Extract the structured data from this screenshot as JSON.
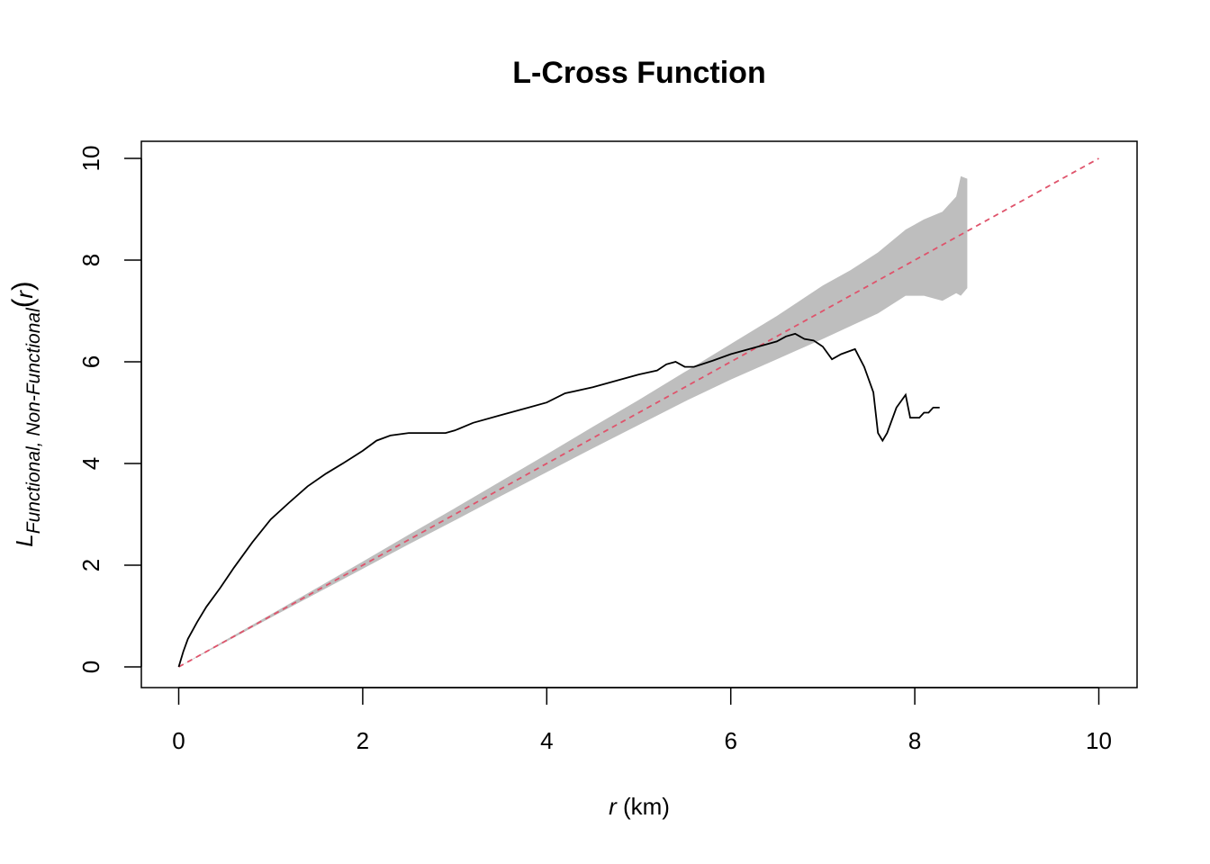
{
  "chart_data": {
    "type": "line",
    "title": "L-Cross Function",
    "xlabel": {
      "var": "r",
      "unit": " (km)"
    },
    "ylabel": {
      "main": "L",
      "sub": "Functional, Non-Functional",
      "arg": "r"
    },
    "xlim": [
      0,
      10
    ],
    "ylim": [
      0,
      10
    ],
    "xticks": [
      "0",
      "2",
      "4",
      "6",
      "8",
      "10"
    ],
    "yticks": [
      "0",
      "2",
      "4",
      "6",
      "8",
      "10"
    ],
    "grid": false,
    "legend": "none",
    "colors": {
      "observed": "#000000",
      "theoretical": "#DF536B",
      "envelope": "#BEBEBE"
    },
    "envelope": {
      "x": [
        0,
        0.5,
        1,
        1.5,
        2,
        2.5,
        3,
        3.5,
        4,
        4.5,
        5,
        5.5,
        6,
        6.5,
        7,
        7.3,
        7.6,
        7.9,
        8.1,
        8.3,
        8.45,
        8.5,
        8.57
      ],
      "lo": [
        0,
        0.48,
        0.97,
        1.45,
        1.93,
        2.41,
        2.88,
        3.36,
        3.83,
        4.3,
        4.76,
        5.22,
        5.65,
        6.05,
        6.45,
        6.7,
        6.95,
        7.3,
        7.3,
        7.2,
        7.35,
        7.3,
        7.45
      ],
      "hi": [
        0,
        0.52,
        1.03,
        1.55,
        2.07,
        2.6,
        3.12,
        3.65,
        4.18,
        4.72,
        5.25,
        5.8,
        6.35,
        6.9,
        7.5,
        7.8,
        8.15,
        8.6,
        8.8,
        8.95,
        9.25,
        9.65,
        9.6
      ]
    },
    "series": [
      {
        "key": "theoretical",
        "x": [
          0,
          10
        ],
        "y": [
          0,
          10
        ]
      },
      {
        "key": "observed",
        "x": [
          0,
          0.05,
          0.1,
          0.2,
          0.3,
          0.45,
          0.6,
          0.8,
          1.0,
          1.2,
          1.4,
          1.6,
          1.8,
          2.0,
          2.15,
          2.3,
          2.5,
          2.7,
          2.9,
          3.0,
          3.2,
          3.5,
          3.8,
          4.0,
          4.2,
          4.5,
          4.8,
          5.0,
          5.2,
          5.3,
          5.4,
          5.5,
          5.6,
          5.8,
          6.0,
          6.2,
          6.4,
          6.5,
          6.6,
          6.7,
          6.8,
          6.9,
          7.0,
          7.1,
          7.2,
          7.35,
          7.45,
          7.55,
          7.6,
          7.65,
          7.7,
          7.8,
          7.9,
          7.95,
          8.05,
          8.1,
          8.15,
          8.2,
          8.27
        ],
        "y": [
          0,
          0.3,
          0.55,
          0.88,
          1.18,
          1.55,
          1.95,
          2.45,
          2.9,
          3.23,
          3.55,
          3.8,
          4.02,
          4.25,
          4.45,
          4.55,
          4.6,
          4.6,
          4.6,
          4.65,
          4.8,
          4.95,
          5.1,
          5.2,
          5.38,
          5.5,
          5.65,
          5.75,
          5.83,
          5.95,
          6.0,
          5.9,
          5.9,
          6.02,
          6.15,
          6.25,
          6.35,
          6.4,
          6.5,
          6.55,
          6.45,
          6.42,
          6.3,
          6.05,
          6.15,
          6.25,
          5.9,
          5.4,
          4.6,
          4.45,
          4.6,
          5.1,
          5.35,
          4.9,
          4.9,
          5.0,
          5.0,
          5.1,
          5.1
        ]
      }
    ]
  }
}
